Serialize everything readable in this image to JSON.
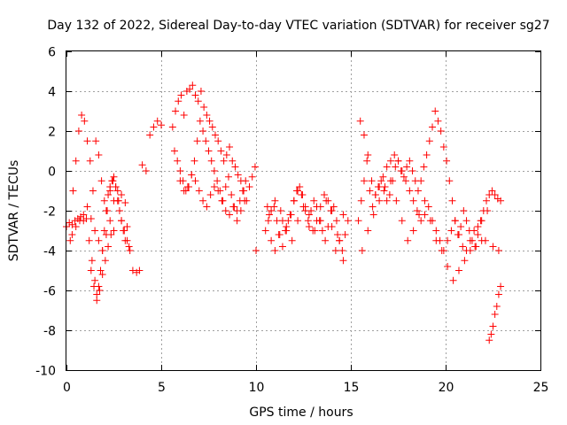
{
  "chart_data": {
    "type": "scatter",
    "title": "Day 132 of 2022, Sidereal Day-to-day VTEC variation (SDTVAR) for receiver sg27",
    "xlabel": "GPS time / hours",
    "ylabel": "SDTVAR / TECUs",
    "xlim": [
      0,
      25
    ],
    "ylim": [
      -10,
      6
    ],
    "xticks": [
      0,
      5,
      10,
      15,
      20,
      25
    ],
    "yticks": [
      -10,
      -8,
      -6,
      -4,
      -2,
      0,
      2,
      4,
      6
    ],
    "grid": true,
    "marker": "+",
    "color": "#ff0000",
    "series": [
      {
        "name": "sg27",
        "x": [
          0.0,
          0.15,
          0.3,
          0.45,
          0.6,
          0.75,
          0.9,
          1.05,
          1.2,
          1.35,
          1.5,
          1.6,
          1.7,
          1.8,
          1.9,
          2.0,
          2.1,
          2.2,
          2.3,
          2.4,
          2.5,
          2.6,
          2.7,
          2.8,
          2.9,
          3.0,
          3.1,
          3.2,
          3.3,
          3.5,
          3.7,
          3.85,
          4.0,
          4.2,
          4.4,
          4.6,
          4.8,
          5.0,
          0.2,
          0.35,
          0.5,
          0.65,
          0.8,
          0.95,
          1.1,
          1.25,
          1.4,
          1.55,
          1.7,
          1.85,
          2.0,
          2.15,
          2.3,
          2.45,
          2.6,
          2.75,
          2.9,
          3.05,
          3.2,
          3.35,
          0.3,
          0.5,
          0.7,
          0.9,
          1.1,
          1.3,
          1.5,
          1.7,
          1.9,
          2.1,
          2.3,
          2.5,
          2.7,
          2.9,
          3.1,
          1.3,
          1.45,
          1.6,
          1.75,
          1.9,
          2.05,
          2.2,
          2.35,
          2.5,
          5.6,
          5.75,
          5.9,
          6.05,
          6.2,
          6.35,
          6.5,
          6.65,
          6.8,
          6.95,
          7.1,
          7.25,
          7.4,
          7.55,
          7.7,
          7.85,
          8.0,
          8.15,
          8.3,
          8.45,
          8.6,
          8.75,
          8.9,
          9.05,
          9.2,
          9.35,
          9.5,
          9.65,
          9.8,
          9.95,
          5.7,
          5.85,
          6.0,
          6.15,
          6.3,
          6.45,
          6.6,
          6.75,
          6.9,
          7.05,
          7.2,
          7.35,
          7.5,
          7.65,
          7.8,
          7.95,
          8.1,
          8.25,
          8.4,
          8.55,
          8.7,
          8.85,
          9.0,
          9.15,
          9.3,
          9.45,
          6.0,
          6.2,
          6.4,
          6.6,
          6.8,
          7.0,
          7.2,
          7.4,
          7.6,
          7.8,
          8.0,
          8.2,
          8.4,
          8.6,
          8.8,
          9.0,
          9.2,
          9.4,
          10.0,
          10.5,
          10.65,
          10.8,
          10.95,
          11.1,
          11.25,
          11.4,
          11.55,
          11.7,
          11.85,
          12.0,
          12.15,
          12.3,
          12.45,
          12.6,
          12.75,
          12.9,
          13.05,
          13.2,
          13.35,
          13.5,
          13.65,
          13.8,
          13.95,
          14.1,
          14.25,
          14.4,
          14.55,
          14.7,
          14.85,
          10.6,
          10.8,
          11.0,
          11.2,
          11.4,
          11.6,
          11.8,
          12.0,
          12.2,
          12.4,
          12.6,
          12.8,
          13.0,
          13.2,
          13.4,
          13.6,
          13.8,
          14.0,
          14.2,
          14.4,
          14.6,
          10.7,
          11.0,
          11.3,
          11.6,
          11.9,
          12.2,
          12.5,
          12.8,
          13.1,
          13.4,
          13.7,
          14.0,
          14.3,
          14.6,
          15.4,
          15.55,
          15.7,
          15.85,
          16.0,
          16.15,
          16.3,
          16.45,
          16.6,
          16.75,
          16.9,
          17.05,
          17.2,
          17.35,
          17.5,
          17.65,
          17.8,
          17.95,
          18.1,
          18.25,
          18.4,
          18.55,
          18.7,
          18.85,
          19.0,
          19.15,
          19.3,
          19.45,
          19.6,
          19.75,
          19.9,
          20.05,
          20.2,
          20.35,
          20.5,
          20.65,
          20.8,
          20.95,
          21.1,
          21.25,
          21.4,
          21.55,
          21.7,
          21.85,
          22.0,
          22.15,
          22.3,
          22.45,
          22.6,
          22.75,
          22.9,
          15.5,
          15.7,
          15.9,
          16.1,
          16.3,
          16.5,
          16.7,
          16.9,
          17.1,
          17.3,
          17.5,
          17.7,
          17.9,
          18.1,
          18.3,
          18.5,
          18.7,
          18.9,
          19.1,
          19.3,
          19.5,
          19.7,
          19.9,
          20.1,
          20.3,
          20.5,
          20.7,
          20.9,
          21.1,
          21.3,
          21.5,
          21.7,
          21.9,
          22.1,
          15.6,
          15.9,
          16.2,
          16.5,
          16.8,
          17.1,
          17.4,
          17.7,
          18.0,
          18.3,
          18.6,
          18.9,
          19.2,
          19.5,
          19.8,
          20.1,
          20.4,
          20.7,
          21.0,
          21.3,
          21.6,
          21.9,
          22.2,
          22.5,
          22.8,
          22.3,
          22.4,
          22.5,
          22.6,
          22.7,
          22.8,
          22.9
        ],
        "y": [
          -2.8,
          -2.6,
          -2.7,
          -2.5,
          -2.4,
          -2.3,
          -2.5,
          -2.4,
          -3.5,
          -4.5,
          -5.5,
          -6.2,
          -5.8,
          -5.0,
          -4.0,
          -3.0,
          -2.0,
          -1.2,
          -0.8,
          -0.5,
          -0.3,
          -0.8,
          -1.5,
          -2.0,
          -2.5,
          -3.0,
          -3.5,
          -2.8,
          -3.8,
          -5.0,
          -5.1,
          -5.0,
          0.3,
          0.0,
          1.8,
          2.2,
          2.5,
          2.3,
          -3.5,
          -1.0,
          0.5,
          2.0,
          2.8,
          2.5,
          1.5,
          0.5,
          -1.0,
          1.5,
          0.8,
          -0.5,
          -1.5,
          -2.0,
          -1.0,
          -0.5,
          -0.8,
          -1.5,
          -2.5,
          -3.0,
          -3.5,
          -4.0,
          -3.2,
          -2.8,
          -2.5,
          -2.2,
          -1.8,
          -2.4,
          -3.0,
          -3.5,
          -4.0,
          -3.2,
          -2.5,
          -1.5,
          -1.0,
          -1.2,
          -1.6,
          -5.0,
          -5.8,
          -6.5,
          -6.0,
          -5.2,
          -4.5,
          -3.8,
          -3.2,
          -3.0,
          2.2,
          3.0,
          3.5,
          3.8,
          2.8,
          4.0,
          4.1,
          4.3,
          3.8,
          3.5,
          4.0,
          3.2,
          2.8,
          2.5,
          2.2,
          1.8,
          1.5,
          1.0,
          0.5,
          0.8,
          1.2,
          0.5,
          0.2,
          -0.2,
          -0.5,
          -1.0,
          -1.5,
          -0.8,
          -0.3,
          0.2,
          1.0,
          0.5,
          0.0,
          -0.5,
          -1.0,
          -0.8,
          -0.2,
          0.5,
          1.5,
          2.5,
          2.0,
          1.5,
          1.0,
          0.5,
          0.0,
          -0.5,
          -1.0,
          -1.5,
          -0.8,
          -0.3,
          -1.2,
          -1.8,
          -2.0,
          -1.5,
          -1.0,
          -0.5,
          -0.5,
          -1.0,
          -0.8,
          -0.2,
          -0.5,
          -1.0,
          -1.5,
          -1.8,
          -1.2,
          -0.8,
          -1.0,
          -1.5,
          -2.0,
          -2.2,
          -1.8,
          -2.5,
          -2.0,
          -1.5,
          -4.0,
          -3.0,
          -2.5,
          -2.0,
          -1.8,
          -2.5,
          -3.2,
          -3.8,
          -3.0,
          -2.5,
          -2.2,
          -1.5,
          -1.0,
          -0.8,
          -1.2,
          -1.8,
          -2.5,
          -2.0,
          -1.5,
          -1.8,
          -2.5,
          -3.0,
          -3.5,
          -2.8,
          -2.0,
          -1.8,
          -2.5,
          -3.5,
          -4.0,
          -3.2,
          -2.5,
          -1.8,
          -3.5,
          -4.0,
          -3.2,
          -2.5,
          -3.0,
          -2.2,
          -1.5,
          -1.0,
          -1.2,
          -2.0,
          -2.8,
          -3.0,
          -2.5,
          -1.8,
          -1.2,
          -1.5,
          -2.8,
          -4.0,
          -3.5,
          -2.2,
          -2.2,
          -1.5,
          -2.0,
          -2.8,
          -3.5,
          -2.5,
          -1.8,
          -2.2,
          -3.0,
          -2.5,
          -1.5,
          -2.0,
          -3.2,
          -4.5,
          -2.5,
          -1.5,
          -0.5,
          0.5,
          -1.0,
          -1.8,
          -1.2,
          -0.8,
          -0.5,
          -1.0,
          -1.5,
          -1.2,
          -0.5,
          0.2,
          0.5,
          0.0,
          -0.3,
          0.2,
          0.5,
          0.0,
          -0.5,
          -1.0,
          -0.5,
          0.2,
          0.8,
          1.5,
          2.2,
          3.0,
          2.5,
          2.0,
          1.2,
          0.5,
          -0.5,
          -1.5,
          -2.5,
          -3.2,
          -2.8,
          -2.0,
          -2.5,
          -3.0,
          -3.5,
          -3.8,
          -3.2,
          -2.5,
          -2.0,
          -1.5,
          -1.2,
          -1.0,
          -1.2,
          -1.4,
          -1.5,
          2.5,
          1.8,
          0.8,
          -0.5,
          -1.2,
          -0.8,
          -0.3,
          0.2,
          0.5,
          0.8,
          0.5,
          0.0,
          -0.5,
          -1.0,
          -1.5,
          -2.0,
          -2.5,
          -2.2,
          -1.8,
          -2.5,
          -3.0,
          -3.5,
          -4.0,
          -3.5,
          -3.0,
          -2.5,
          -3.2,
          -3.8,
          -4.0,
          -3.5,
          -3.0,
          -2.8,
          -2.5,
          -3.5,
          -4.0,
          -3.0,
          -2.2,
          -1.5,
          -0.8,
          -0.5,
          -1.5,
          -2.5,
          -3.5,
          -3.0,
          -2.2,
          -1.5,
          -2.5,
          -3.5,
          -4.0,
          -4.8,
          -5.5,
          -5.0,
          -4.5,
          -4.0,
          -3.8,
          -3.5,
          -2.0,
          -3.8,
          -4.0,
          -8.5,
          -8.2,
          -7.8,
          -7.2,
          -6.8,
          -6.2,
          -5.8
        ]
      }
    ]
  }
}
